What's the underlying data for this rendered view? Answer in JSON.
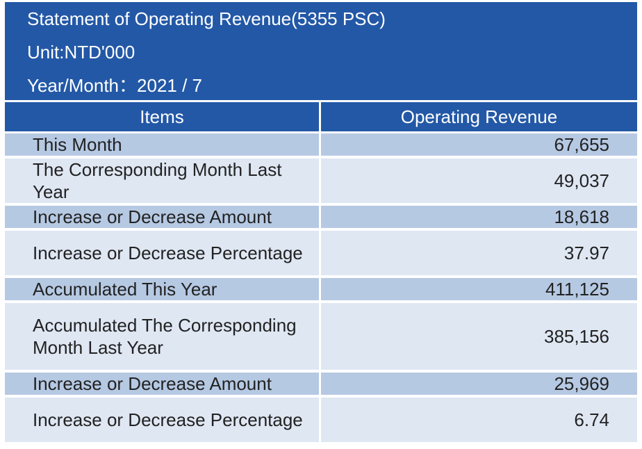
{
  "header": {
    "title": "Statement of Operating Revenue(5355 PSC)",
    "unit": "Unit:NTD'000",
    "year_month": "Year/Month：2021 / 7"
  },
  "table": {
    "columns": [
      "Items",
      "Operating Revenue"
    ],
    "rows": [
      {
        "item": "This Month",
        "value": "67,655"
      },
      {
        "item": "The Corresponding Month Last Year",
        "value": "49,037"
      },
      {
        "item": "Increase or Decrease Amount",
        "value": "18,618"
      },
      {
        "item": "Increase or Decrease Percentage",
        "value": "37.97"
      },
      {
        "item": "Accumulated This Year",
        "value": "411,125"
      },
      {
        "item": "Accumulated The Corresponding Month Last Year",
        "value": "385,156"
      },
      {
        "item": "Increase or Decrease Amount",
        "value": "25,969"
      },
      {
        "item": "Increase or Decrease Percentage",
        "value": "6.74"
      }
    ]
  },
  "colors": {
    "header_bg": "#2358a6",
    "row_dark": "#b6c9e3",
    "row_light": "#dfe7f3"
  }
}
